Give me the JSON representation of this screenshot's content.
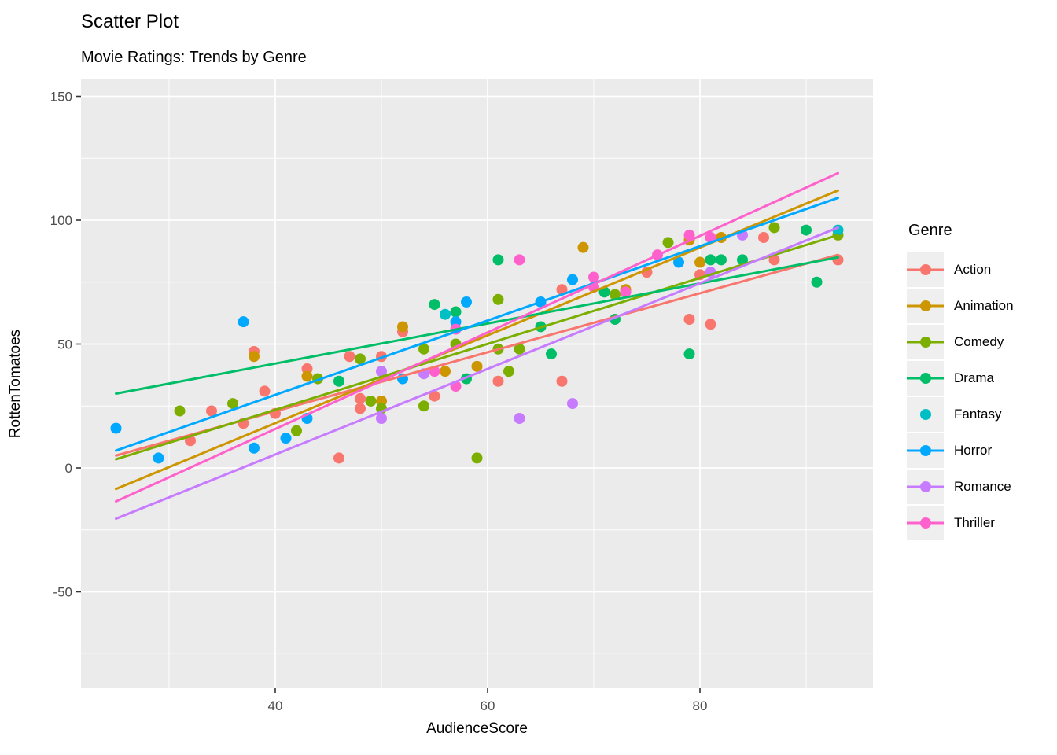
{
  "title": "Scatter Plot",
  "subtitle": "Movie Ratings: Trends by Genre",
  "colors": {
    "background": "#FFFFFF",
    "panel": "#EBEBEB",
    "grid": "#FFFFFF",
    "tick_mark": "#333333",
    "tick_text": "#4D4D4D",
    "text": "#000000",
    "legend_key": "#EFEFEF"
  },
  "chart_data": {
    "type": "scatter",
    "title": "Scatter Plot",
    "subtitle": "Movie Ratings: Trends by Genre",
    "xlabel": "AudienceScore",
    "ylabel": "RottenTomatoes",
    "legend_title": "Genre",
    "legend_position": "right",
    "grid": true,
    "xlim": [
      21.7,
      96.3
    ],
    "ylim": [
      -89,
      157
    ],
    "x_ticks": [
      40,
      60,
      80
    ],
    "y_ticks": [
      -50,
      0,
      50,
      100,
      150
    ],
    "x_minor": [
      30,
      50,
      70,
      90
    ],
    "y_minor": [
      -75,
      -25,
      25,
      75,
      125
    ],
    "point_radius": 7,
    "line_width": 3,
    "series": [
      {
        "name": "Action",
        "color": "#F8766D",
        "has_trend": true,
        "trend": [
          [
            25,
            5
          ],
          [
            93,
            86
          ]
        ],
        "points": [
          [
            32,
            11
          ],
          [
            34,
            23
          ],
          [
            37,
            18
          ],
          [
            38,
            47
          ],
          [
            39,
            31
          ],
          [
            40,
            22
          ],
          [
            43,
            40
          ],
          [
            46,
            4
          ],
          [
            47,
            45
          ],
          [
            48,
            28
          ],
          [
            48,
            24
          ],
          [
            50,
            45
          ],
          [
            52,
            55
          ],
          [
            55,
            29
          ],
          [
            61,
            35
          ],
          [
            67,
            35
          ],
          [
            67,
            72
          ],
          [
            75,
            79
          ],
          [
            79,
            60
          ],
          [
            80,
            78
          ],
          [
            81,
            58
          ],
          [
            86,
            93
          ],
          [
            87,
            84
          ],
          [
            93,
            84
          ]
        ]
      },
      {
        "name": "Animation",
        "color": "#CD9600",
        "has_trend": true,
        "trend": [
          [
            25,
            -8.5
          ],
          [
            93,
            112
          ]
        ],
        "points": [
          [
            38,
            45
          ],
          [
            43,
            37
          ],
          [
            50,
            27
          ],
          [
            52,
            57
          ],
          [
            56,
            39
          ],
          [
            59,
            41
          ],
          [
            69,
            89
          ],
          [
            73,
            72
          ],
          [
            79,
            92
          ],
          [
            80,
            83
          ],
          [
            82,
            93
          ]
        ]
      },
      {
        "name": "Comedy",
        "color": "#7CAE00",
        "has_trend": true,
        "trend": [
          [
            25,
            3.5
          ],
          [
            93,
            94
          ]
        ],
        "points": [
          [
            31,
            23
          ],
          [
            36,
            26
          ],
          [
            42,
            15
          ],
          [
            44,
            36
          ],
          [
            48,
            44
          ],
          [
            49,
            27
          ],
          [
            50,
            24
          ],
          [
            54,
            48
          ],
          [
            54,
            25
          ],
          [
            57,
            50
          ],
          [
            59,
            4
          ],
          [
            61,
            48
          ],
          [
            61,
            68
          ],
          [
            62,
            39
          ],
          [
            63,
            48
          ],
          [
            72,
            70
          ],
          [
            77,
            91
          ],
          [
            87,
            97
          ],
          [
            93,
            94
          ]
        ]
      },
      {
        "name": "Drama",
        "color": "#00BE67",
        "has_trend": true,
        "trend": [
          [
            25,
            30
          ],
          [
            93,
            85
          ]
        ],
        "points": [
          [
            46,
            35
          ],
          [
            55,
            66
          ],
          [
            57,
            63
          ],
          [
            58,
            36
          ],
          [
            61,
            84
          ],
          [
            65,
            57
          ],
          [
            66,
            46
          ],
          [
            71,
            71
          ],
          [
            72,
            60
          ],
          [
            79,
            46
          ],
          [
            81,
            84
          ],
          [
            82,
            84
          ],
          [
            84,
            84
          ],
          [
            90,
            96
          ],
          [
            91,
            75
          ]
        ]
      },
      {
        "name": "Fantasy",
        "color": "#00BFC4",
        "has_trend": false,
        "trend": null,
        "points": [
          [
            56,
            62
          ],
          [
            93,
            96
          ]
        ]
      },
      {
        "name": "Horror",
        "color": "#00A9FF",
        "has_trend": true,
        "trend": [
          [
            25,
            7
          ],
          [
            93,
            109
          ]
        ],
        "points": [
          [
            25,
            16
          ],
          [
            29,
            4
          ],
          [
            37,
            59
          ],
          [
            38,
            8
          ],
          [
            41,
            12
          ],
          [
            43,
            20
          ],
          [
            52,
            36
          ],
          [
            57,
            59
          ],
          [
            58,
            67
          ],
          [
            65,
            67
          ],
          [
            68,
            76
          ],
          [
            78,
            83
          ]
        ]
      },
      {
        "name": "Romance",
        "color": "#C77CFF",
        "has_trend": true,
        "trend": [
          [
            25,
            -20.5
          ],
          [
            93,
            97
          ]
        ],
        "points": [
          [
            50,
            39
          ],
          [
            50,
            20
          ],
          [
            54,
            38
          ],
          [
            63,
            20
          ],
          [
            68,
            26
          ],
          [
            81,
            79
          ],
          [
            84,
            94
          ]
        ]
      },
      {
        "name": "Thriller",
        "color": "#FF61CC",
        "has_trend": true,
        "trend": [
          [
            25,
            -13.5
          ],
          [
            93,
            119
          ]
        ],
        "points": [
          [
            55,
            39
          ],
          [
            57,
            56
          ],
          [
            57,
            33
          ],
          [
            63,
            84
          ],
          [
            70,
            77
          ],
          [
            70,
            73
          ],
          [
            73,
            71
          ],
          [
            76,
            86
          ],
          [
            79,
            94
          ],
          [
            81,
            93
          ]
        ]
      }
    ]
  }
}
